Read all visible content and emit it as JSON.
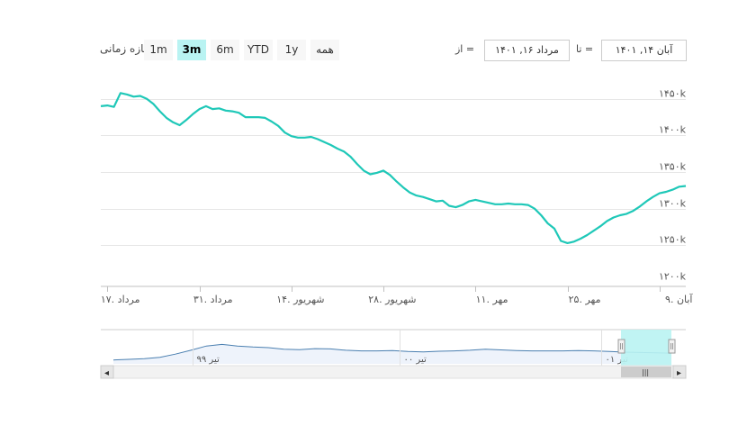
{
  "range_selector": {
    "label": "بازه زمانی",
    "buttons": [
      "1m",
      "3m",
      "6m",
      "YTD",
      "1y",
      "همه"
    ],
    "selected": "3m"
  },
  "date_inputs": {
    "from_label": "از =",
    "from_value": "مرداد ۱۶, ۱۴۰۱",
    "to_label": "تا =",
    "to_value": "آبان ۱۴, ۱۴۰۱"
  },
  "colors": {
    "line": "#1fc8b8",
    "navigator_line": "#4a7fb0",
    "navigator_fill": "#eef3fb",
    "mask": "#b9f3f2",
    "grid": "#e6e6e6"
  },
  "chart_data": {
    "type": "line",
    "title": "",
    "xlabel": "",
    "ylabel": "",
    "ylim": [
      1200000,
      1450000
    ],
    "y_ticks": [
      {
        "value": 1200000,
        "label": "۱۲۰۰k"
      },
      {
        "value": 1250000,
        "label": "۱۲۵۰k"
      },
      {
        "value": 1300000,
        "label": "۱۳۰۰k"
      },
      {
        "value": 1350000,
        "label": "۱۳۵۰k"
      },
      {
        "value": 1400000,
        "label": "۱۴۰۰k"
      },
      {
        "value": 1450000,
        "label": "۱۴۵۰k"
      }
    ],
    "x_start": "1401-05-16",
    "x_end": "1401-08-14",
    "x_ticks": [
      {
        "day": 1,
        "label": "۱۷. مرداد"
      },
      {
        "day": 15,
        "label": "۳۱. مرداد"
      },
      {
        "day": 29,
        "label": "۱۴. شهریور"
      },
      {
        "day": 43,
        "label": "۲۸. شهریور"
      },
      {
        "day": 57,
        "label": "۱۱. مهر"
      },
      {
        "day": 71,
        "label": "۲۵. مهر"
      },
      {
        "day": 85,
        "label": "۹. آبان"
      }
    ],
    "series": [
      {
        "name": "",
        "x": [
          0,
          1,
          2,
          3,
          4,
          5,
          6,
          7,
          8,
          9,
          10,
          11,
          12,
          13,
          14,
          15,
          16,
          17,
          18,
          19,
          20,
          21,
          22,
          23,
          24,
          25,
          26,
          27,
          28,
          29,
          30,
          31,
          32,
          33,
          34,
          35,
          36,
          37,
          38,
          39,
          40,
          41,
          42,
          43,
          44,
          45,
          46,
          47,
          48,
          49,
          50,
          51,
          52,
          53,
          54,
          55,
          56,
          57,
          58,
          59,
          60,
          61,
          62,
          63,
          64,
          65,
          66,
          67,
          68,
          69,
          70,
          71,
          72,
          73,
          74,
          75,
          76,
          77,
          78,
          79,
          80,
          81,
          82,
          83,
          84,
          85,
          86,
          87,
          88,
          89
        ],
        "values": [
          1440000,
          1441000,
          1439000,
          1458000,
          1456000,
          1453000,
          1454000,
          1450000,
          1443000,
          1433000,
          1424000,
          1418000,
          1414000,
          1421000,
          1429000,
          1436000,
          1440000,
          1436000,
          1437000,
          1434000,
          1433000,
          1431000,
          1425000,
          1425000,
          1425000,
          1424000,
          1419000,
          1413000,
          1404000,
          1399000,
          1397000,
          1397000,
          1398000,
          1395000,
          1391000,
          1387000,
          1382000,
          1378000,
          1371000,
          1361000,
          1352000,
          1347000,
          1349000,
          1352000,
          1346000,
          1337000,
          1329000,
          1322000,
          1318000,
          1316000,
          1313000,
          1310000,
          1311000,
          1304000,
          1302000,
          1305000,
          1310000,
          1312000,
          1310000,
          1308000,
          1306000,
          1306000,
          1307000,
          1306000,
          1306000,
          1305000,
          1300000,
          1291000,
          1280000,
          1273000,
          1256000,
          1253000,
          1255000,
          1259000,
          1264000,
          1270000,
          1276000,
          1283000,
          1288000,
          1291000,
          1293000,
          1297000,
          1303000,
          1310000,
          1316000,
          1321000,
          1323000,
          1326000,
          1330000,
          1331000
        ]
      }
    ]
  },
  "navigator": {
    "labels": [
      "تیر ۹۹",
      "تیر ۰۰",
      "تیر ۰۱"
    ],
    "values": [
      0.12,
      0.14,
      0.16,
      0.2,
      0.3,
      0.42,
      0.55,
      0.6,
      0.55,
      0.52,
      0.5,
      0.45,
      0.44,
      0.47,
      0.46,
      0.42,
      0.4,
      0.4,
      0.41,
      0.38,
      0.37,
      0.39,
      0.4,
      0.42,
      0.45,
      0.43,
      0.41,
      0.4,
      0.4,
      0.4,
      0.41,
      0.4,
      0.38,
      0.36,
      0.35,
      0.34,
      0.33
    ]
  },
  "scrollbar": {
    "left_arrow": "◂",
    "right_arrow": "▸",
    "grip": "|||"
  }
}
